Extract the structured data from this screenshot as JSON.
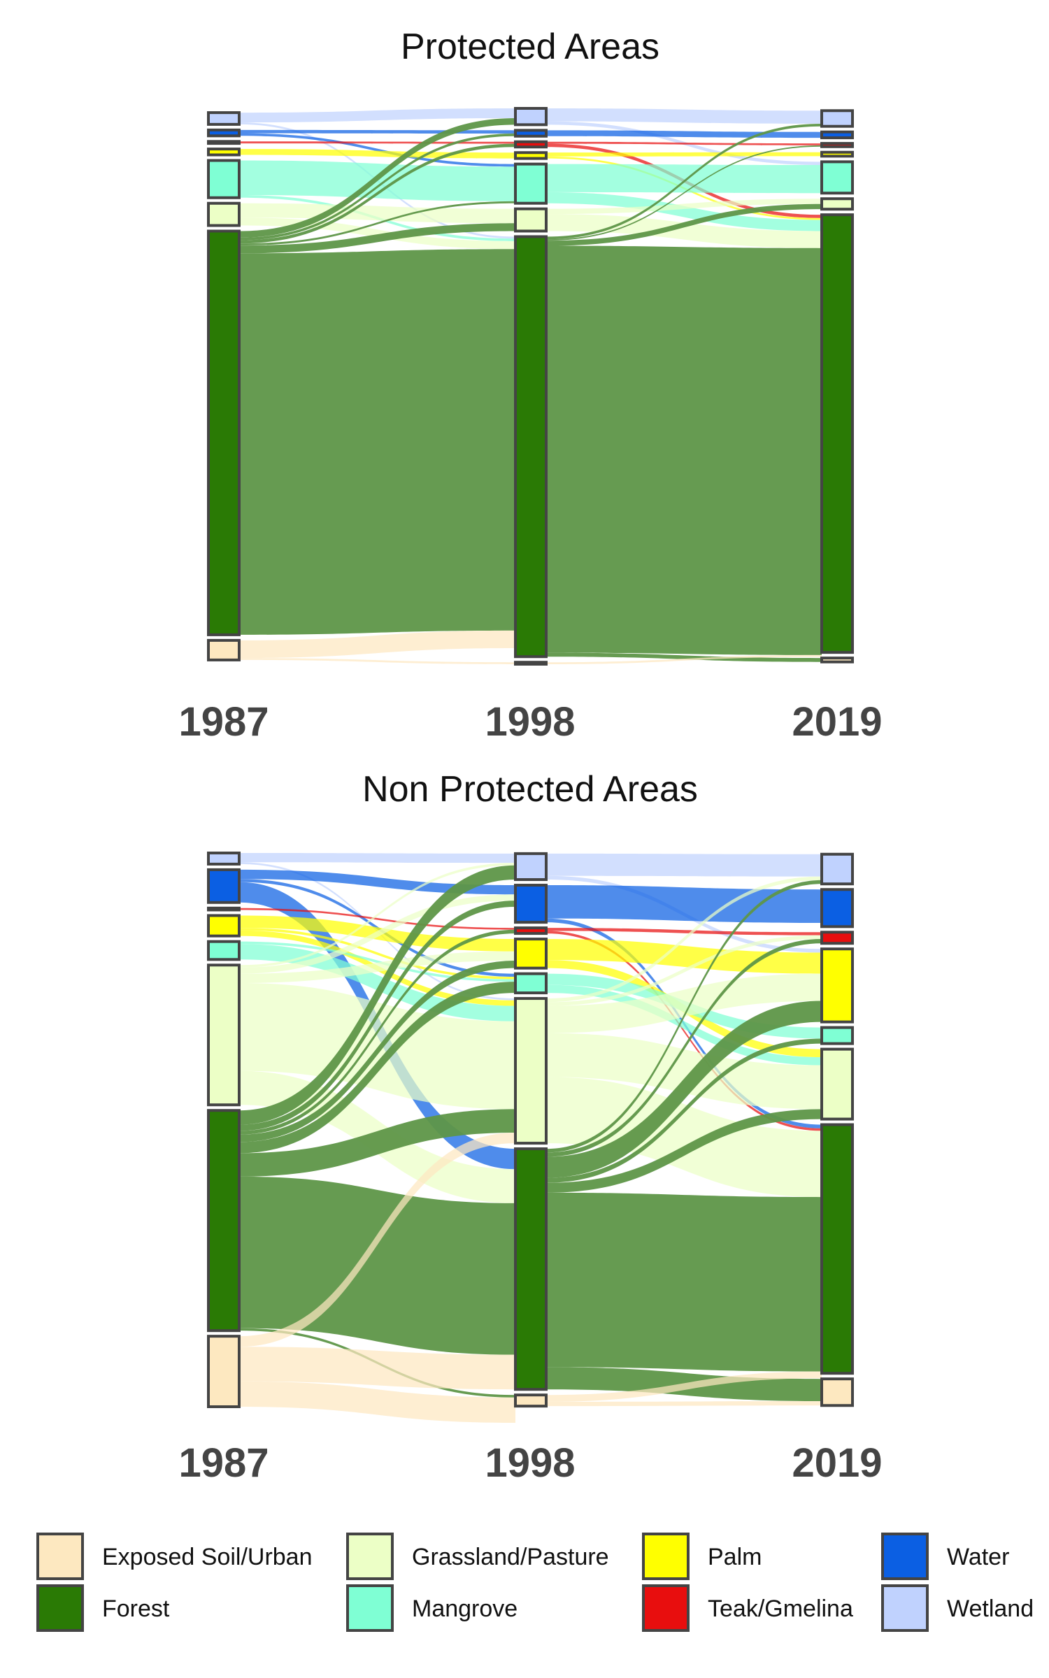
{
  "chart_data": [
    {
      "type": "sankey",
      "title": "Protected Areas",
      "stages": [
        "1987",
        "1998",
        "2019"
      ],
      "categories": [
        "Wetland",
        "Water",
        "Teak/Gmelina",
        "Palm",
        "Mangrove",
        "Grassland/Pasture",
        "Forest",
        "Exposed Soil/Urban"
      ],
      "stage_values": {
        "1987": [
          1.8,
          0.9,
          0.3,
          0.9,
          5.7,
          3.4,
          61.8,
          3.0
        ],
        "1998": [
          2.5,
          0.9,
          0.8,
          0.9,
          6.0,
          3.4,
          64.3,
          0.3
        ],
        "2019": [
          2.4,
          0.9,
          0.5,
          0.6,
          4.8,
          1.6,
          67.0,
          0.6
        ]
      },
      "flows": [
        {
          "stage": 0,
          "from": "Wetland",
          "to": "Wetland",
          "value": 1.5
        },
        {
          "stage": 0,
          "from": "Wetland",
          "to": "Forest",
          "value": 0.3
        },
        {
          "stage": 0,
          "from": "Water",
          "to": "Water",
          "value": 0.5
        },
        {
          "stage": 0,
          "from": "Water",
          "to": "Mangrove",
          "value": 0.4
        },
        {
          "stage": 0,
          "from": "Teak/Gmelina",
          "to": "Teak/Gmelina",
          "value": 0.3
        },
        {
          "stage": 0,
          "from": "Palm",
          "to": "Palm",
          "value": 0.9
        },
        {
          "stage": 0,
          "from": "Mangrove",
          "to": "Mangrove",
          "value": 5.3
        },
        {
          "stage": 0,
          "from": "Mangrove",
          "to": "Forest",
          "value": 0.4
        },
        {
          "stage": 0,
          "from": "Grassland/Pasture",
          "to": "Grassland/Pasture",
          "value": 2.2
        },
        {
          "stage": 0,
          "from": "Grassland/Pasture",
          "to": "Forest",
          "value": 1.2
        },
        {
          "stage": 0,
          "from": "Forest",
          "to": "Wetland",
          "value": 1.0
        },
        {
          "stage": 0,
          "from": "Forest",
          "to": "Water",
          "value": 0.4
        },
        {
          "stage": 0,
          "from": "Forest",
          "to": "Teak/Gmelina",
          "value": 0.5
        },
        {
          "stage": 0,
          "from": "Forest",
          "to": "Mangrove",
          "value": 0.3
        },
        {
          "stage": 0,
          "from": "Forest",
          "to": "Grassland/Pasture",
          "value": 1.2
        },
        {
          "stage": 0,
          "from": "Forest",
          "to": "Forest",
          "value": 58.4
        },
        {
          "stage": 0,
          "from": "Exposed Soil/Urban",
          "to": "Forest",
          "value": 2.7
        },
        {
          "stage": 0,
          "from": "Exposed Soil/Urban",
          "to": "Exposed Soil/Urban",
          "value": 0.3
        },
        {
          "stage": 1,
          "from": "Wetland",
          "to": "Wetland",
          "value": 2.0
        },
        {
          "stage": 1,
          "from": "Wetland",
          "to": "Mangrove",
          "value": 0.5
        },
        {
          "stage": 1,
          "from": "Water",
          "to": "Water",
          "value": 0.9
        },
        {
          "stage": 1,
          "from": "Teak/Gmelina",
          "to": "Teak/Gmelina",
          "value": 0.3
        },
        {
          "stage": 1,
          "from": "Teak/Gmelina",
          "to": "Forest",
          "value": 0.5
        },
        {
          "stage": 1,
          "from": "Palm",
          "to": "Palm",
          "value": 0.6
        },
        {
          "stage": 1,
          "from": "Palm",
          "to": "Forest",
          "value": 0.3
        },
        {
          "stage": 1,
          "from": "Mangrove",
          "to": "Mangrove",
          "value": 4.3
        },
        {
          "stage": 1,
          "from": "Mangrove",
          "to": "Forest",
          "value": 1.7
        },
        {
          "stage": 1,
          "from": "Grassland/Pasture",
          "to": "Grassland/Pasture",
          "value": 0.8
        },
        {
          "stage": 1,
          "from": "Grassland/Pasture",
          "to": "Forest",
          "value": 2.6
        },
        {
          "stage": 1,
          "from": "Forest",
          "to": "Wetland",
          "value": 0.4
        },
        {
          "stage": 1,
          "from": "Forest",
          "to": "Teak/Gmelina",
          "value": 0.2
        },
        {
          "stage": 1,
          "from": "Forest",
          "to": "Grassland/Pasture",
          "value": 0.8
        },
        {
          "stage": 1,
          "from": "Forest",
          "to": "Forest",
          "value": 62.3
        },
        {
          "stage": 1,
          "from": "Forest",
          "to": "Exposed Soil/Urban",
          "value": 0.6
        },
        {
          "stage": 1,
          "from": "Exposed Soil/Urban",
          "to": "Forest",
          "value": 0.3
        }
      ]
    },
    {
      "type": "sankey",
      "title": "Non Protected Areas",
      "stages": [
        "1987",
        "1998",
        "2019"
      ],
      "categories": [
        "Wetland",
        "Water",
        "Teak/Gmelina",
        "Palm",
        "Mangrove",
        "Grassland/Pasture",
        "Forest",
        "Exposed Soil/Urban"
      ],
      "stage_values": {
        "1987": [
          1.8,
          5.3,
          0.3,
          3.3,
          2.9,
          22.6,
          35.6,
          11.4
        ],
        "1998": [
          4.2,
          6.0,
          0.9,
          4.7,
          3.1,
          23.4,
          38.9,
          1.8
        ],
        "2019": [
          4.8,
          6.0,
          1.8,
          11.8,
          2.6,
          11.3,
          40.2,
          4.3
        ]
      },
      "flows": [
        {
          "stage": 0,
          "from": "Wetland",
          "to": "Wetland",
          "value": 1.5
        },
        {
          "stage": 0,
          "from": "Wetland",
          "to": "Grassland/Pasture",
          "value": 0.3
        },
        {
          "stage": 0,
          "from": "Water",
          "to": "Water",
          "value": 1.5
        },
        {
          "stage": 0,
          "from": "Water",
          "to": "Mangrove",
          "value": 0.5
        },
        {
          "stage": 0,
          "from": "Water",
          "to": "Forest",
          "value": 3.3
        },
        {
          "stage": 0,
          "from": "Teak/Gmelina",
          "to": "Teak/Gmelina",
          "value": 0.3
        },
        {
          "stage": 0,
          "from": "Palm",
          "to": "Palm",
          "value": 2.0
        },
        {
          "stage": 0,
          "from": "Palm",
          "to": "Mangrove",
          "value": 0.4
        },
        {
          "stage": 0,
          "from": "Palm",
          "to": "Grassland/Pasture",
          "value": 0.9
        },
        {
          "stage": 0,
          "from": "Mangrove",
          "to": "Mangrove",
          "value": 0.4
        },
        {
          "stage": 0,
          "from": "Mangrove",
          "to": "Grassland/Pasture",
          "value": 2.5
        },
        {
          "stage": 0,
          "from": "Grassland/Pasture",
          "to": "Wetland",
          "value": 0.4
        },
        {
          "stage": 0,
          "from": "Grassland/Pasture",
          "to": "Water",
          "value": 1.0
        },
        {
          "stage": 0,
          "from": "Grassland/Pasture",
          "to": "Palm",
          "value": 1.5
        },
        {
          "stage": 0,
          "from": "Grassland/Pasture",
          "to": "Grassland/Pasture",
          "value": 14.2
        },
        {
          "stage": 0,
          "from": "Grassland/Pasture",
          "to": "Forest",
          "value": 5.5
        },
        {
          "stage": 0,
          "from": "Forest",
          "to": "Wetland",
          "value": 2.3
        },
        {
          "stage": 0,
          "from": "Forest",
          "to": "Water",
          "value": 1.0
        },
        {
          "stage": 0,
          "from": "Forest",
          "to": "Teak/Gmelina",
          "value": 0.6
        },
        {
          "stage": 0,
          "from": "Forest",
          "to": "Palm",
          "value": 1.2
        },
        {
          "stage": 0,
          "from": "Forest",
          "to": "Mangrove",
          "value": 1.8
        },
        {
          "stage": 0,
          "from": "Forest",
          "to": "Grassland/Pasture",
          "value": 3.8
        },
        {
          "stage": 0,
          "from": "Forest",
          "to": "Forest",
          "value": 24.5
        },
        {
          "stage": 0,
          "from": "Forest",
          "to": "Exposed Soil/Urban",
          "value": 0.4
        },
        {
          "stage": 0,
          "from": "Exposed Soil/Urban",
          "to": "Grassland/Pasture",
          "value": 1.7
        },
        {
          "stage": 0,
          "from": "Exposed Soil/Urban",
          "to": "Forest",
          "value": 5.6
        },
        {
          "stage": 0,
          "from": "Exposed Soil/Urban",
          "to": "Exposed Soil/Urban",
          "value": 4.1
        },
        {
          "stage": 1,
          "from": "Wetland",
          "to": "Wetland",
          "value": 3.6
        },
        {
          "stage": 1,
          "from": "Wetland",
          "to": "Palm",
          "value": 0.6
        },
        {
          "stage": 1,
          "from": "Water",
          "to": "Water",
          "value": 5.4
        },
        {
          "stage": 1,
          "from": "Water",
          "to": "Forest",
          "value": 0.6
        },
        {
          "stage": 1,
          "from": "Teak/Gmelina",
          "to": "Teak/Gmelina",
          "value": 0.5
        },
        {
          "stage": 1,
          "from": "Teak/Gmelina",
          "to": "Forest",
          "value": 0.4
        },
        {
          "stage": 1,
          "from": "Palm",
          "to": "Palm",
          "value": 3.4
        },
        {
          "stage": 1,
          "from": "Palm",
          "to": "Grassland/Pasture",
          "value": 1.3
        },
        {
          "stage": 1,
          "from": "Mangrove",
          "to": "Mangrove",
          "value": 1.8
        },
        {
          "stage": 1,
          "from": "Mangrove",
          "to": "Grassland/Pasture",
          "value": 1.3
        },
        {
          "stage": 1,
          "from": "Grassland/Pasture",
          "to": "Wetland",
          "value": 0.6
        },
        {
          "stage": 1,
          "from": "Grassland/Pasture",
          "to": "Teak/Gmelina",
          "value": 0.6
        },
        {
          "stage": 1,
          "from": "Grassland/Pasture",
          "to": "Palm",
          "value": 4.4
        },
        {
          "stage": 1,
          "from": "Grassland/Pasture",
          "to": "Grassland/Pasture",
          "value": 7.1
        },
        {
          "stage": 1,
          "from": "Grassland/Pasture",
          "to": "Forest",
          "value": 10.7
        },
        {
          "stage": 1,
          "from": "Forest",
          "to": "Wetland",
          "value": 0.6
        },
        {
          "stage": 1,
          "from": "Forest",
          "to": "Teak/Gmelina",
          "value": 0.7
        },
        {
          "stage": 1,
          "from": "Forest",
          "to": "Palm",
          "value": 3.4
        },
        {
          "stage": 1,
          "from": "Forest",
          "to": "Mangrove",
          "value": 0.8
        },
        {
          "stage": 1,
          "from": "Forest",
          "to": "Grassland/Pasture",
          "value": 1.6
        },
        {
          "stage": 1,
          "from": "Forest",
          "to": "Forest",
          "value": 28.2
        },
        {
          "stage": 1,
          "from": "Forest",
          "to": "Exposed Soil/Urban",
          "value": 3.6
        },
        {
          "stage": 1,
          "from": "Exposed Soil/Urban",
          "to": "Forest",
          "value": 1.1
        },
        {
          "stage": 1,
          "from": "Exposed Soil/Urban",
          "to": "Exposed Soil/Urban",
          "value": 0.7
        }
      ]
    }
  ],
  "legend": [
    {
      "label": "Exposed Soil/Urban",
      "color": "#fde8c0"
    },
    {
      "label": "Grassland/Pasture",
      "color": "#ecffc6"
    },
    {
      "label": "Palm",
      "color": "#ffff00"
    },
    {
      "label": "Water",
      "color": "#0b5fe3"
    },
    {
      "label": "Forest",
      "color": "#2a7a05"
    },
    {
      "label": "Mangrove",
      "color": "#7fffd4"
    },
    {
      "label": "Teak/Gmelina",
      "color": "#e80e0e"
    },
    {
      "label": "Wetland",
      "color": "#c0d2fe"
    }
  ],
  "colors": {
    "Wetland": "#c0d2fe",
    "Water": "#0b5fe3",
    "Teak/Gmelina": "#e80e0e",
    "Palm": "#ffff00",
    "Mangrove": "#7fffd4",
    "Grassland/Pasture": "#ecffc6",
    "Forest": "#2a7a05",
    "Exposed Soil/Urban": "#fde8c0"
  },
  "link_colors": {
    "Forest": "#5e9648"
  }
}
